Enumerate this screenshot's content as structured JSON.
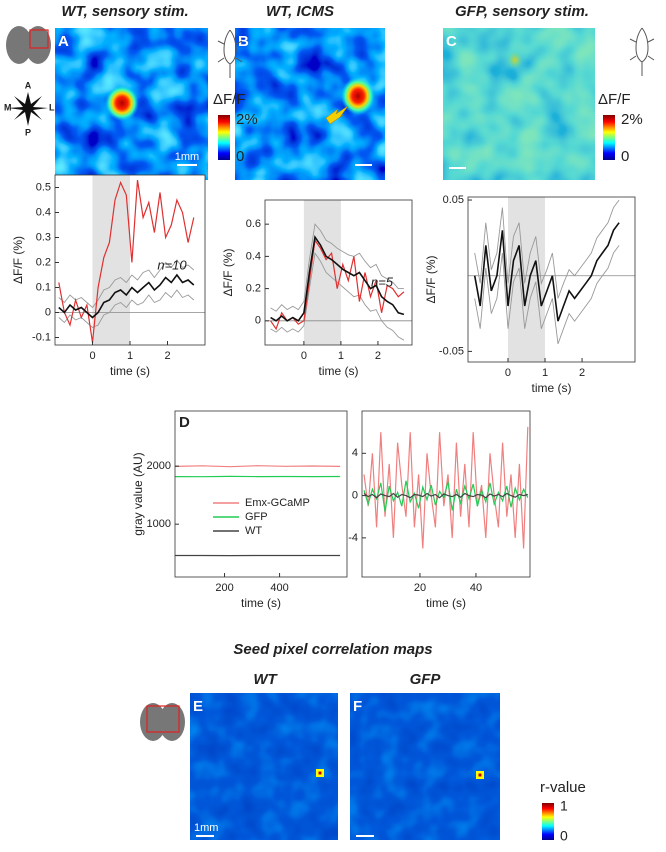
{
  "panels": [
    {
      "letter": "A",
      "title": "WT, sensory stim.",
      "scale_bar": "1mm"
    },
    {
      "letter": "B",
      "title": "WT, ICMS"
    },
    {
      "letter": "C",
      "title": "GFP, sensory stim."
    }
  ],
  "orientation": {
    "anterior": "A",
    "medial": "M",
    "lateral": "L",
    "posterior": "P"
  },
  "colorbars": [
    {
      "title": "ΔF/F",
      "max": "2%",
      "min": "0"
    },
    {
      "title": "ΔF/F",
      "max": "2%",
      "min": "0"
    },
    {
      "title": "r-value",
      "max": "1",
      "min": "0"
    }
  ],
  "correlation": {
    "title": "Seed pixel correlation maps",
    "maps": [
      {
        "letter": "E",
        "title": "WT",
        "scale_bar": "1mm"
      },
      {
        "letter": "F",
        "title": "GFP"
      }
    ]
  },
  "chart_data": [
    {
      "type": "line",
      "xlabel": "time (s)",
      "ylabel": "ΔF/F (%)",
      "annotation": "n=10",
      "span": [
        0,
        1
      ],
      "x": [
        -0.9,
        -0.75,
        -0.6,
        -0.45,
        -0.3,
        -0.15,
        0,
        0.15,
        0.3,
        0.45,
        0.6,
        0.75,
        0.9,
        1.05,
        1.2,
        1.35,
        1.5,
        1.65,
        1.8,
        1.95,
        2.1,
        2.25,
        2.4,
        2.55,
        2.7
      ],
      "xlim": [
        -1,
        3
      ],
      "xticks": [
        0,
        1,
        2
      ],
      "ylim": [
        -0.13,
        0.55
      ],
      "yticks": [
        -0.1,
        0,
        0.1,
        0.2,
        0.3,
        0.4,
        0.5
      ],
      "series": [
        {
          "color": "#999999",
          "values": [
            0.06,
            0.04,
            0.07,
            0.05,
            0.06,
            0.04,
            0.02,
            0.05,
            0.09,
            0.1,
            0.13,
            0.14,
            0.12,
            0.15,
            0.13,
            0.16,
            0.17,
            0.14,
            0.17,
            0.2,
            0.18,
            0.21,
            0.18,
            0.19,
            0.17
          ]
        },
        {
          "color": "#999999",
          "values": [
            -0.02,
            -0.04,
            -0.01,
            -0.03,
            -0.02,
            -0.04,
            -0.06,
            -0.05,
            -0.01,
            0.0,
            0.03,
            0.04,
            0.02,
            0.05,
            0.03,
            0.04,
            0.07,
            0.04,
            0.05,
            0.08,
            0.06,
            0.09,
            0.06,
            0.07,
            0.05
          ]
        },
        {
          "color": "#e03030",
          "values": [
            0.12,
            0.0,
            -0.05,
            0.05,
            -0.02,
            0.03,
            -0.12,
            0.1,
            0.22,
            0.28,
            0.45,
            0.52,
            0.47,
            0.2,
            0.53,
            0.38,
            0.44,
            0.32,
            0.48,
            0.3,
            0.35,
            0.45,
            0.4,
            0.28,
            0.38
          ]
        },
        {
          "color": "#111111",
          "values": [
            0.02,
            0.0,
            0.03,
            0.01,
            0.02,
            0.0,
            -0.02,
            0.0,
            0.04,
            0.05,
            0.08,
            0.09,
            0.07,
            0.1,
            0.08,
            0.1,
            0.12,
            0.09,
            0.11,
            0.14,
            0.12,
            0.15,
            0.12,
            0.13,
            0.11
          ]
        }
      ]
    },
    {
      "type": "line",
      "xlabel": "time (s)",
      "ylabel": "ΔF/F (%)",
      "annotation": "n=5",
      "span": [
        0,
        1
      ],
      "x": [
        -0.9,
        -0.75,
        -0.6,
        -0.45,
        -0.3,
        -0.15,
        0,
        0.15,
        0.3,
        0.45,
        0.6,
        0.75,
        0.9,
        1.05,
        1.2,
        1.35,
        1.5,
        1.65,
        1.8,
        1.95,
        2.1,
        2.25,
        2.4,
        2.55,
        2.7
      ],
      "xlim": [
        -1.05,
        2.92
      ],
      "xticks": [
        0,
        1,
        2
      ],
      "ylim": [
        -0.15,
        0.75
      ],
      "yticks": [
        0,
        0.2,
        0.4,
        0.6
      ],
      "series": [
        {
          "color": "#999999",
          "values": [
            0.08,
            0.06,
            0.1,
            0.07,
            0.09,
            0.07,
            0.12,
            0.38,
            0.6,
            0.56,
            0.5,
            0.48,
            0.45,
            0.43,
            0.41,
            0.4,
            0.42,
            0.37,
            0.33,
            0.35,
            0.28,
            0.26,
            0.24,
            0.2,
            0.2
          ]
        },
        {
          "color": "#999999",
          "values": [
            -0.05,
            -0.07,
            -0.04,
            -0.07,
            -0.05,
            -0.07,
            -0.03,
            0.2,
            0.42,
            0.37,
            0.3,
            0.27,
            0.24,
            0.21,
            0.18,
            0.15,
            0.16,
            0.1,
            0.06,
            0.07,
            0.0,
            -0.04,
            -0.06,
            -0.1,
            -0.12
          ]
        },
        {
          "color": "#e03030",
          "values": [
            0.0,
            -0.05,
            0.05,
            0.0,
            0.02,
            -0.02,
            0.0,
            0.25,
            0.5,
            0.45,
            0.38,
            0.42,
            0.2,
            0.35,
            0.25,
            0.4,
            0.12,
            0.3,
            0.15,
            0.25,
            0.05,
            0.22,
            0.2,
            0.15,
            0.18
          ]
        },
        {
          "color": "#111111",
          "values": [
            0.02,
            0.0,
            0.03,
            0.0,
            0.02,
            0.0,
            0.05,
            0.3,
            0.52,
            0.47,
            0.4,
            0.38,
            0.35,
            0.32,
            0.3,
            0.28,
            0.3,
            0.25,
            0.2,
            0.22,
            0.15,
            0.12,
            0.1,
            0.05,
            0.04
          ]
        }
      ]
    },
    {
      "type": "line",
      "xlabel": "time (s)",
      "ylabel": "ΔF/F (%)",
      "span": [
        0,
        1
      ],
      "x": [
        -0.9,
        -0.75,
        -0.6,
        -0.45,
        -0.3,
        -0.15,
        0,
        0.15,
        0.3,
        0.45,
        0.6,
        0.75,
        0.9,
        1.05,
        1.2,
        1.35,
        1.5,
        1.65,
        1.8,
        1.95,
        2.1,
        2.25,
        2.4,
        2.55,
        2.7,
        2.85,
        3.0
      ],
      "xlim": [
        -1.08,
        3.43
      ],
      "xticks": [
        0,
        1,
        2
      ],
      "ylim": [
        -0.057,
        0.052
      ],
      "yticks": [
        -0.05,
        0.05
      ],
      "series": [
        {
          "color": "#999999",
          "values": [
            0.015,
            -0.005,
            0.035,
            0.004,
            0.015,
            0.045,
            -0.005,
            0.026,
            0.035,
            -0.005,
            0.015,
            0.026,
            -0.005,
            0.004,
            0.015,
            -0.015,
            -0.005,
            0.004,
            0.0,
            0.005,
            0.01,
            0.015,
            0.025,
            0.03,
            0.035,
            0.045,
            0.05
          ]
        },
        {
          "color": "#999999",
          "values": [
            -0.015,
            -0.035,
            0.005,
            -0.025,
            -0.015,
            0.015,
            -0.035,
            -0.004,
            0.005,
            -0.035,
            -0.015,
            -0.004,
            -0.035,
            -0.025,
            -0.015,
            -0.045,
            -0.035,
            -0.025,
            -0.03,
            -0.025,
            -0.02,
            -0.015,
            -0.005,
            0.0,
            0.005,
            0.015,
            0.02
          ]
        },
        {
          "color": "#111111",
          "values": [
            0.0,
            -0.02,
            0.02,
            -0.01,
            0.0,
            0.03,
            -0.02,
            0.01,
            0.02,
            -0.02,
            0.0,
            0.01,
            -0.02,
            -0.01,
            0.0,
            -0.03,
            -0.02,
            -0.01,
            -0.015,
            -0.01,
            -0.005,
            0.0,
            0.01,
            0.015,
            0.02,
            0.03,
            0.035
          ]
        }
      ]
    },
    {
      "type": "line",
      "panel": "D",
      "xlabel": "time (s)",
      "ylabel": "gray value (AU)",
      "legend": "center",
      "x": [
        20,
        120,
        220,
        320,
        420,
        520,
        620
      ],
      "xlim": [
        20,
        645
      ],
      "xticks": [
        200,
        400
      ],
      "ylim": [
        90,
        2950
      ],
      "yticks": [
        1000,
        2000
      ],
      "series": [
        {
          "name": "Emx-GCaMP",
          "color": "#f08080",
          "values": [
            1995,
            2005,
            1990,
            2008,
            1998,
            2003,
            1996
          ]
        },
        {
          "name": "GFP",
          "color": "#22cc55",
          "values": [
            1820,
            1818,
            1823,
            1819,
            1821,
            1820,
            1822
          ]
        },
        {
          "name": "WT",
          "color": "#444444",
          "values": [
            460,
            461,
            459,
            460,
            460,
            461,
            460
          ]
        }
      ]
    },
    {
      "type": "line",
      "xlabel": "time (s)",
      "x": [
        0,
        1.5,
        3,
        4.5,
        6,
        7.5,
        9,
        10.5,
        12,
        13.5,
        15,
        16.5,
        18,
        19.5,
        21,
        22.5,
        24,
        25.5,
        27,
        28.5,
        30,
        31.5,
        33,
        34.5,
        36,
        37.5,
        39,
        40.5,
        42,
        43.5,
        45,
        46.5,
        48,
        49.5,
        51,
        52.5,
        54,
        55.5,
        57,
        58.5
      ],
      "xlim": [
        -0.7,
        59.3
      ],
      "xticks": [
        20,
        40
      ],
      "ylim": [
        -7.7,
        8
      ],
      "yticks": [
        -4,
        0,
        4
      ],
      "series": [
        {
          "color": "#f08080",
          "values": [
            2,
            -1,
            4,
            -3,
            6,
            -2,
            3,
            -4,
            5,
            1,
            -2,
            6,
            -3,
            2,
            -5,
            4,
            0,
            -3,
            6,
            -1,
            2,
            -4,
            5,
            -2,
            3,
            -3,
            6,
            -1,
            1,
            -4,
            4,
            0,
            -3,
            5,
            -2,
            2,
            -4,
            3,
            -5,
            6.5
          ]
        },
        {
          "color": "#22cc55",
          "values": [
            0.5,
            -0.8,
            0.6,
            -0.3,
            1.2,
            -1.5,
            0.9,
            -0.5,
            0.3,
            -1.0,
            1.4,
            -0.6,
            0.2,
            -1.2,
            0.8,
            -0.4,
            1.0,
            -0.9,
            0.4,
            -0.2,
            1.3,
            -1.4,
            0.6,
            -0.7,
            0.9,
            -0.3,
            1.1,
            -1.0,
            0.5,
            -0.6,
            1.2,
            -0.8,
            0.3,
            -0.5,
            0.9,
            -1.1,
            0.7,
            -0.4,
            0.6,
            -0.2
          ]
        },
        {
          "color": "#444444",
          "values": [
            0.2,
            -0.1,
            0.1,
            -0.2,
            0.15,
            0.0,
            -0.1,
            0.2,
            -0.15,
            0.1,
            0.0,
            -0.2,
            0.1,
            0.05,
            -0.1,
            0.2,
            -0.05,
            0.1,
            -0.2,
            0.15,
            0.0,
            -0.1,
            0.1,
            -0.15,
            0.2,
            0.0,
            -0.1,
            0.1,
            0.05,
            -0.2,
            0.15,
            -0.05,
            0.1,
            -0.1,
            0.2,
            0.0,
            -0.15,
            0.1,
            0.0,
            0.1
          ]
        }
      ]
    }
  ]
}
